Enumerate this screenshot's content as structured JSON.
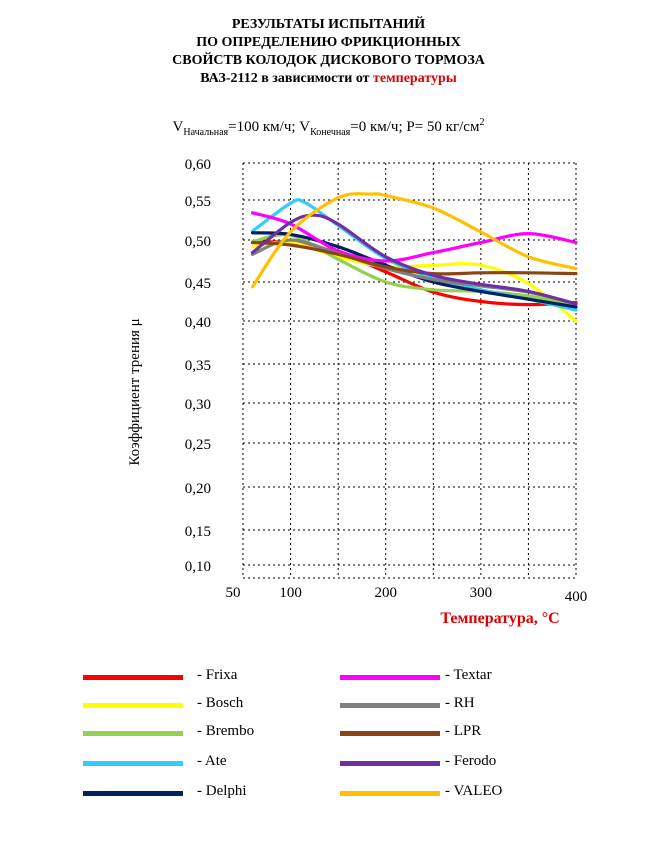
{
  "title": {
    "line1": "РЕЗУЛЬТАТЫ ИСПЫТАНИЙ",
    "line2": "ПО ОПРЕДЕЛЕНИЮ ФРИКЦИОННЫХ",
    "line3": "СВОЙСТВ КОЛОДОК ДИСКОВОГО ТОРМОЗА",
    "line4_prefix": "ВАЗ-2112  в зависимости от ",
    "line4_highlight": "температуры"
  },
  "subtitle": {
    "v_start_sym": "V",
    "v_start_sub": "Начальная",
    "v_start_val": "=100 км/ч; ",
    "v_end_sym": "V",
    "v_end_sub": "Конечная",
    "v_end_val": "=0 км/ч; P= 50 кг/см",
    "unit_sup": "2"
  },
  "colors": {
    "highlight": "#e00000",
    "grid": "#000000"
  },
  "chart_data": {
    "type": "line",
    "xlabel": "Температура, °С",
    "ylabel": "Коэффициент трения  μ",
    "x_ticks": [
      "50",
      "100",
      "200",
      "300",
      "400"
    ],
    "x_tick_values": [
      50,
      100,
      200,
      300,
      400
    ],
    "y_ticks": [
      "0,60",
      "0,55",
      "0,50",
      "0,45",
      "0,40",
      "0,35",
      "0,30",
      "0,25",
      "0,20",
      "0,15",
      "0,10"
    ],
    "xlim": [
      50,
      400
    ],
    "ylim": [
      0.1,
      0.6
    ],
    "grid": true,
    "series": [
      {
        "name": "Frixa",
        "color": "#ff0000",
        "x": [
          60,
          100,
          150,
          200,
          250,
          300,
          350,
          400
        ],
        "values": [
          0.497,
          0.497,
          0.485,
          0.462,
          0.437,
          0.425,
          0.421,
          0.424
        ]
      },
      {
        "name": "Bosch",
        "color": "#ffff00",
        "x": [
          60,
          100,
          150,
          200,
          250,
          300,
          350,
          400
        ],
        "values": [
          0.492,
          0.497,
          0.48,
          0.468,
          0.47,
          0.47,
          0.448,
          0.4
        ]
      },
      {
        "name": "Brembo",
        "color": "#92d050",
        "x": [
          60,
          100,
          150,
          200,
          250,
          300,
          350,
          400
        ],
        "values": [
          0.498,
          0.506,
          0.477,
          0.45,
          0.44,
          0.438,
          0.432,
          0.42
        ]
      },
      {
        "name": "Ate",
        "color": "#33ccff",
        "x": [
          60,
          100,
          115,
          150,
          200,
          250,
          300,
          350,
          400
        ],
        "values": [
          0.511,
          0.546,
          0.547,
          0.518,
          0.478,
          0.455,
          0.44,
          0.428,
          0.414
        ]
      },
      {
        "name": "Delphi",
        "color": "#002060",
        "x": [
          60,
          100,
          150,
          200,
          250,
          300,
          350,
          400
        ],
        "values": [
          0.509,
          0.507,
          0.492,
          0.47,
          0.45,
          0.438,
          0.428,
          0.418
        ]
      },
      {
        "name": "Textar",
        "color": "#ff00ff",
        "x": [
          60,
          100,
          150,
          200,
          250,
          300,
          350,
          400
        ],
        "values": [
          0.534,
          0.52,
          0.487,
          0.475,
          0.485,
          0.497,
          0.508,
          0.497
        ]
      },
      {
        "name": "RH",
        "color": "#808080",
        "x": [
          60,
          100,
          150,
          200,
          250,
          300,
          350,
          400
        ],
        "values": [
          0.483,
          0.5,
          0.484,
          0.466,
          0.453,
          0.445,
          0.437,
          0.422
        ]
      },
      {
        "name": "LPR",
        "color": "#8b4513",
        "x": [
          60,
          100,
          150,
          200,
          250,
          300,
          350,
          400
        ],
        "values": [
          0.497,
          0.494,
          0.483,
          0.468,
          0.46,
          0.461,
          0.461,
          0.46
        ]
      },
      {
        "name": "Ferodo",
        "color": "#7030a0",
        "x": [
          60,
          100,
          125,
          150,
          200,
          250,
          300,
          350,
          400
        ],
        "values": [
          0.485,
          0.522,
          0.531,
          0.52,
          0.48,
          0.458,
          0.447,
          0.438,
          0.422
        ]
      },
      {
        "name": "VALEO",
        "color": "#ffc000",
        "x": [
          60,
          100,
          150,
          185,
          200,
          250,
          300,
          350,
          400
        ],
        "values": [
          0.444,
          0.51,
          0.553,
          0.558,
          0.556,
          0.54,
          0.51,
          0.48,
          0.466
        ]
      }
    ]
  },
  "legend": [
    {
      "label": "- Frixa",
      "color": "#ff0000"
    },
    {
      "label": "- Textar",
      "color": "#ff00ff"
    },
    {
      "label": "- Bosch",
      "color": "#ffff00"
    },
    {
      "label": "- RH",
      "color": "#808080"
    },
    {
      "label": "- Brembo",
      "color": "#92d050"
    },
    {
      "label": "- LPR",
      "color": "#8b4513"
    },
    {
      "label": "- Ate",
      "color": "#33ccff"
    },
    {
      "label": "- Ferodo",
      "color": "#7030a0"
    },
    {
      "label": "- Delphi",
      "color": "#002060"
    },
    {
      "label": "- VALEO",
      "color": "#ffc000"
    }
  ]
}
